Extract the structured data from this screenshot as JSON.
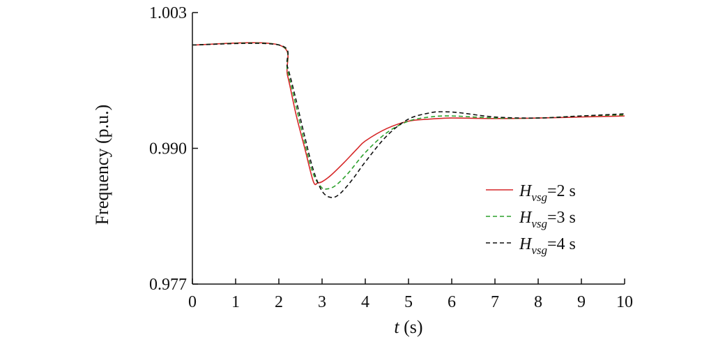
{
  "chart_data": {
    "type": "line",
    "title": "",
    "xlabel": {
      "var": "t",
      "unit": " (s)"
    },
    "ylabel": "Frequency (p.u.)",
    "xlim": [
      0,
      10
    ],
    "ylim": [
      0.977,
      1.003
    ],
    "x_ticks": [
      "0",
      "1",
      "2",
      "3",
      "4",
      "5",
      "6",
      "7",
      "8",
      "9",
      "10"
    ],
    "y_ticks": [
      "0.977",
      "0.990",
      "1.003"
    ],
    "grid": false,
    "legend_position": "right",
    "series": [
      {
        "name": "H_vsg=2 s",
        "legend": {
          "sym": "H",
          "sub": "vsg",
          "rest": "=2 s"
        },
        "color": "#d62728",
        "style": "solid",
        "points": [
          [
            0,
            0.9999
          ],
          [
            2.0,
            0.9999
          ],
          [
            2.2,
            0.997
          ],
          [
            2.4,
            0.9932
          ],
          [
            2.6,
            0.99
          ],
          [
            2.8,
            0.9868
          ],
          [
            2.9,
            0.9867
          ],
          [
            3.0,
            0.9868
          ],
          [
            3.2,
            0.9874
          ],
          [
            3.5,
            0.9886
          ],
          [
            3.8,
            0.9899
          ],
          [
            4.0,
            0.9907
          ],
          [
            4.5,
            0.9919
          ],
          [
            5.0,
            0.9926
          ],
          [
            5.5,
            0.9928
          ],
          [
            6.0,
            0.9929
          ],
          [
            7.0,
            0.99285
          ],
          [
            8.0,
            0.9929
          ],
          [
            9.0,
            0.993
          ],
          [
            10.0,
            0.9931
          ]
        ]
      },
      {
        "name": "H_vsg=3 s",
        "legend": {
          "sym": "H",
          "sub": "vsg",
          "rest": "=3 s"
        },
        "color": "#2ca02c",
        "style": "dashed",
        "points": [
          [
            0,
            0.9999
          ],
          [
            2.0,
            0.9999
          ],
          [
            2.2,
            0.9974
          ],
          [
            2.4,
            0.994
          ],
          [
            2.6,
            0.9905
          ],
          [
            2.8,
            0.9875
          ],
          [
            3.0,
            0.9862
          ],
          [
            3.1,
            0.9861
          ],
          [
            3.3,
            0.9864
          ],
          [
            3.6,
            0.9876
          ],
          [
            4.0,
            0.9896
          ],
          [
            4.5,
            0.9915
          ],
          [
            5.0,
            0.9926
          ],
          [
            5.5,
            0.993
          ],
          [
            6.0,
            0.9931
          ],
          [
            7.0,
            0.9929
          ],
          [
            8.0,
            0.9929
          ],
          [
            9.0,
            0.9931
          ],
          [
            10.0,
            0.9932
          ]
        ]
      },
      {
        "name": "H_vsg=4 s",
        "legend": {
          "sym": "H",
          "sub": "vsg",
          "rest": "=4 s"
        },
        "color": "#111111",
        "style": "dashed",
        "points": [
          [
            0,
            0.9999
          ],
          [
            2.0,
            0.9999
          ],
          [
            2.2,
            0.9978
          ],
          [
            2.4,
            0.9946
          ],
          [
            2.6,
            0.9911
          ],
          [
            2.8,
            0.9879
          ],
          [
            3.0,
            0.9859
          ],
          [
            3.2,
            0.9853
          ],
          [
            3.4,
            0.9856
          ],
          [
            3.7,
            0.987
          ],
          [
            4.0,
            0.9887
          ],
          [
            4.5,
            0.9912
          ],
          [
            5.0,
            0.9928
          ],
          [
            5.5,
            0.9934
          ],
          [
            5.8,
            0.9935
          ],
          [
            6.2,
            0.9934
          ],
          [
            7.0,
            0.993
          ],
          [
            8.0,
            0.9929
          ],
          [
            9.0,
            0.9931
          ],
          [
            10.0,
            0.9933
          ]
        ]
      }
    ]
  }
}
